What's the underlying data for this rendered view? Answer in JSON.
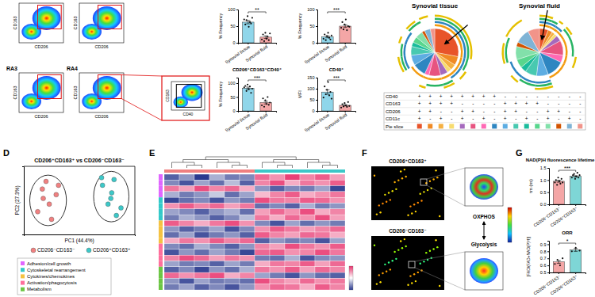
{
  "panel_letters": [
    "D",
    "E",
    "F",
    "G"
  ],
  "flow": {
    "plots": [
      {
        "x_label": "CD206",
        "y_label": "CD163"
      },
      {
        "x_label": "CD206",
        "y_label": "CD163"
      },
      {
        "label": "RA3",
        "x_label": "CD206",
        "y_label": "CD163"
      },
      {
        "label": "RA4",
        "x_label": "CD206",
        "y_label": "CD163"
      }
    ],
    "zoom": {
      "x_label": "CD40",
      "y_label": "CD163"
    }
  },
  "table": {
    "rows": [
      {
        "label": "CD40",
        "color": "#f39c12",
        "values": [
          "+",
          "+",
          "+",
          "+",
          "+",
          "+",
          "+",
          "+",
          "-",
          "-",
          "-",
          "-",
          "-",
          "-",
          "-",
          "-"
        ]
      },
      {
        "label": "CD163",
        "color": "#2e86c1",
        "values": [
          "+",
          "+",
          "+",
          "+",
          "-",
          "-",
          "-",
          "-",
          "+",
          "+",
          "+",
          "+",
          "-",
          "-",
          "-",
          "-"
        ]
      },
      {
        "label": "CD206",
        "color": "#28b463",
        "values": [
          "+",
          "+",
          "-",
          "-",
          "+",
          "+",
          "-",
          "-",
          "+",
          "+",
          "-",
          "-",
          "+",
          "+",
          "-",
          "-"
        ]
      },
      {
        "label": "CD11c",
        "color": "#e5c000",
        "values": [
          "+",
          "-",
          "+",
          "-",
          "+",
          "-",
          "+",
          "-",
          "+",
          "-",
          "+",
          "-",
          "+",
          "-",
          "+",
          "-"
        ]
      }
    ],
    "slice_label": "Pie slice"
  },
  "microscopy": {
    "top_label": "CD206⁺CD163⁺",
    "bottom_label": "CD206⁻CD163⁻",
    "top_state": "OXPHOS",
    "bottom_state": "Glycolysis"
  },
  "chart_data": [
    {
      "type": "bar",
      "y_label": "% Frequency",
      "categories": [
        "Synovial tissue",
        "Synovial fluid"
      ],
      "values": [
        62,
        17
      ],
      "errors": [
        5,
        4
      ],
      "points": [
        [
          70,
          55,
          68,
          80,
          48,
          62,
          58,
          75
        ],
        [
          10,
          25,
          5,
          30,
          12,
          18,
          8,
          28
        ]
      ],
      "colors": [
        "#8fd6ea",
        "#f4a6a6"
      ],
      "annotation": "**",
      "ylim": [
        0,
        100
      ],
      "yticks": [
        0,
        50,
        100
      ]
    },
    {
      "type": "bar",
      "y_label": "% Frequency",
      "categories": [
        "Synovial tissue",
        "Synovial fluid"
      ],
      "values": [
        18,
        50
      ],
      "errors": [
        3,
        4
      ],
      "points": [
        [
          12,
          25,
          8,
          20,
          30,
          15,
          10,
          22
        ],
        [
          45,
          62,
          40,
          55,
          70,
          38,
          50,
          48
        ]
      ],
      "colors": [
        "#8fd6ea",
        "#f4a6a6"
      ],
      "annotation": "***",
      "ylim": [
        0,
        100
      ],
      "yticks": [
        0,
        50,
        100
      ]
    },
    {
      "type": "bar",
      "title": "CD206⁺CD163⁺CD40⁺",
      "y_label": "% Frequency",
      "categories": [
        "Synovial tissue",
        "Synovial fluid"
      ],
      "values": [
        82,
        30
      ],
      "errors": [
        4,
        5
      ],
      "points": [
        [
          85,
          90,
          72,
          95,
          78,
          88,
          65,
          80
        ],
        [
          20,
          45,
          15,
          38,
          25,
          50,
          22,
          30
        ]
      ],
      "colors": [
        "#8fd6ea",
        "#f4a6a6"
      ],
      "annotation": "***",
      "ylim": [
        0,
        120
      ],
      "yticks": [
        0,
        50,
        100
      ]
    },
    {
      "type": "bar",
      "title": "CD40⁺",
      "y_label": "MFI",
      "categories": [
        "Synovial tissue",
        "Synovial fluid"
      ],
      "values": [
        85,
        25
      ],
      "errors": [
        10,
        3
      ],
      "points": [
        [
          60,
          110,
          75,
          95,
          130,
          70,
          85,
          55
        ],
        [
          15,
          30,
          20,
          35,
          25,
          18,
          40,
          22
        ]
      ],
      "colors": [
        "#8fd6ea",
        "#f4a6a6"
      ],
      "annotation": "***",
      "ylim": [
        0,
        150
      ],
      "yticks": [
        0,
        50,
        100,
        150
      ]
    },
    {
      "type": "scatter",
      "title": "CD206⁺CD163⁺ vs CD206⁻CD163⁻",
      "x_label": "PC1 (44.4%)",
      "y_label": "PC2 (27.3%)",
      "xlim": [
        -12,
        12
      ],
      "ylim": [
        -9,
        9
      ],
      "tick_labels": false,
      "legend": "bottom",
      "series": [
        {
          "name": "CD206⁻CD163⁻",
          "color": "#f08080",
          "x": [
            -8,
            -6.5,
            -7.2,
            -5,
            -9,
            -6,
            -4.5,
            -7.8
          ],
          "values": [
            3,
            -1,
            5,
            1.5,
            -3,
            -5,
            4,
            0.5
          ]
        },
        {
          "name": "CD206⁺CD163⁺",
          "color": "#3cc8c8",
          "x": [
            5,
            7,
            6.2,
            8,
            4.8,
            6.8,
            9,
            7.5
          ],
          "values": [
            4,
            2,
            -1,
            -4,
            6,
            0.5,
            -2,
            5.5
          ]
        }
      ]
    },
    {
      "type": "heatmap",
      "color_range": [
        -1.5,
        1.5
      ],
      "column_colors": [
        "#f08080",
        "#f08080",
        "#f08080",
        "#f08080",
        "#f08080",
        "#f08080",
        "#3cc8c8",
        "#3cc8c8",
        "#3cc8c8",
        "#3cc8c8",
        "#3cc8c8",
        "#3cc8c8"
      ],
      "row_group_labels": [
        "Adhesion/cell growth",
        "Cytoskeletal rearrangement",
        "Cytokines/chemokines",
        "Activation/phagocytosis",
        "Metabolism"
      ],
      "row_group_colors": [
        "#e066ff",
        "#33c9c9",
        "#f5c242",
        "#ff6f9c",
        "#6cc644"
      ],
      "row_groups": [
        0,
        0,
        0,
        0,
        1,
        1,
        1,
        1,
        2,
        2,
        2,
        2,
        3,
        3,
        3,
        3,
        4,
        4,
        4,
        4
      ],
      "cells": [
        [
          -1.2,
          -0.8,
          -1.5,
          -0.6,
          -1.0,
          -0.9,
          1.1,
          0.8,
          1.4,
          0.9,
          1.2,
          0.7
        ],
        [
          -0.9,
          -1.3,
          -0.7,
          -1.1,
          -0.5,
          -1.2,
          0.9,
          1.3,
          0.6,
          1.0,
          0.8,
          1.2
        ],
        [
          1.0,
          0.7,
          1.3,
          0.9,
          1.1,
          0.6,
          -0.8,
          -1.2,
          -0.9,
          -1.0,
          -0.7,
          -1.4
        ],
        [
          -0.6,
          -1.0,
          -0.8,
          -0.4,
          -1.1,
          -0.7,
          0.5,
          0.9,
          1.2,
          0.6,
          0.8,
          1.0
        ],
        [
          -1.4,
          -1.1,
          -0.9,
          -1.3,
          -0.8,
          -1.0,
          1.3,
          1.0,
          0.9,
          1.2,
          1.1,
          0.8
        ],
        [
          0.8,
          1.2,
          0.9,
          1.1,
          0.7,
          1.0,
          -1.1,
          -0.9,
          -1.2,
          -0.6,
          -1.0,
          -0.8
        ],
        [
          -0.7,
          -0.9,
          -1.2,
          -0.8,
          -0.6,
          -1.1,
          0.7,
          1.1,
          0.8,
          1.3,
          0.6,
          0.9
        ],
        [
          -1.0,
          -0.6,
          -0.8,
          -1.2,
          -0.9,
          -0.5,
          1.0,
          0.6,
          1.1,
          0.8,
          1.3,
          0.7
        ],
        [
          1.2,
          0.9,
          0.6,
          1.0,
          1.3,
          0.8,
          -0.9,
          -1.3,
          -0.7,
          -1.1,
          -0.8,
          -1.0
        ],
        [
          -0.8,
          -1.2,
          -1.0,
          -0.7,
          -1.3,
          -0.9,
          0.8,
          1.2,
          1.0,
          0.7,
          0.9,
          1.1
        ],
        [
          -1.1,
          -0.7,
          -1.3,
          -1.0,
          -0.8,
          -1.2,
          1.2,
          0.9,
          0.7,
          1.1,
          1.0,
          0.6
        ],
        [
          0.6,
          1.0,
          0.8,
          1.2,
          0.9,
          1.1,
          -1.2,
          -0.8,
          -1.0,
          -0.9,
          -1.3,
          -0.7
        ],
        [
          -0.9,
          -1.1,
          -0.6,
          -0.9,
          -1.2,
          -0.8,
          0.9,
          0.7,
          1.3,
          1.0,
          0.8,
          1.2
        ],
        [
          -1.3,
          -0.8,
          -1.1,
          -0.7,
          -1.0,
          -1.4,
          1.1,
          1.2,
          0.8,
          0.9,
          1.3,
          1.0
        ],
        [
          0.9,
          1.3,
          1.1,
          0.7,
          1.0,
          0.8,
          -1.0,
          -1.1,
          -0.6,
          -1.3,
          -0.9,
          -0.8
        ],
        [
          -0.7,
          -1.0,
          -0.9,
          -1.2,
          -0.7,
          -1.0,
          0.6,
          1.0,
          0.9,
          1.2,
          0.7,
          1.1
        ],
        [
          -1.2,
          -0.9,
          -1.4,
          -0.8,
          -1.1,
          -0.6,
          1.0,
          0.8,
          1.2,
          0.7,
          1.1,
          0.9
        ],
        [
          1.1,
          0.8,
          1.0,
          1.3,
          0.6,
          0.9,
          -0.7,
          -1.0,
          -1.3,
          -0.8,
          -1.1,
          -1.2
        ],
        [
          -0.8,
          -1.3,
          -0.7,
          -1.0,
          -0.9,
          -1.1,
          1.3,
          0.9,
          0.7,
          1.1,
          0.8,
          1.0
        ],
        [
          -1.0,
          -0.7,
          -1.2,
          -0.9,
          -1.3,
          -0.8,
          0.8,
          1.1,
          1.0,
          0.6,
          1.2,
          0.9
        ]
      ]
    },
    {
      "type": "bar",
      "title": "NAD(P)H fluorescence lifetime",
      "y_label": "τm (ns)",
      "categories": [
        "CD206⁻CD163⁻",
        "CD206⁺CD163⁺"
      ],
      "values": [
        0.95,
        1.15
      ],
      "errors": [
        0.04,
        0.03
      ],
      "points": [
        [
          0.9,
          1.0,
          0.8,
          1.1,
          0.95,
          0.85,
          1.05,
          0.9
        ],
        [
          1.1,
          1.2,
          1.25,
          1.05,
          1.15,
          1.3,
          1.1,
          1.2
        ]
      ],
      "colors": [
        "#f4a6a6",
        "#7ed6d6"
      ],
      "annotation": "***",
      "ylim": [
        0,
        1.5
      ],
      "yticks": [
        {
          "value": 0,
          "label": "0.0"
        },
        0.5,
        {
          "value": 1,
          "label": "1.0"
        },
        1.5
      ]
    },
    {
      "type": "bar",
      "title": "ORR",
      "y_label": "[FAD/(FAD+NAD(P)H)]",
      "categories": [
        "CD206⁻CD163⁻",
        "CD206⁺CD163⁺"
      ],
      "values": [
        0.65,
        0.82
      ],
      "errors": [
        0.02,
        0.02
      ],
      "points": [
        [
          0.62,
          0.68,
          0.6,
          0.7
        ],
        [
          0.8,
          0.85,
          0.81
        ]
      ],
      "colors": [
        "#f4a6a6",
        "#7ed6d6"
      ],
      "annotation": "*",
      "ylim": [
        0.5,
        0.95
      ],
      "yticks": [
        0.5,
        0.6,
        0.7,
        0.8,
        0.9
      ]
    },
    {
      "type": "pie",
      "title": "Synovial tissue",
      "values": [
        28,
        6,
        4,
        3,
        5,
        8,
        3,
        9,
        7,
        6,
        3,
        4,
        5,
        2,
        4,
        3
      ],
      "colors": [
        "#e8542a",
        "#f08a24",
        "#f5b041",
        "#f7dc6f",
        "#a569bd",
        "#e75480",
        "#ff69b4",
        "#2e86c1",
        "#5dade2",
        "#48c9b0",
        "#1abc9c",
        "#58d68d",
        "#82e0aa",
        "#d35400",
        "#7fb3d5",
        "#f1948a"
      ]
    },
    {
      "type": "pie",
      "title": "Synovial fluid",
      "values": [
        6,
        3,
        2,
        2,
        4,
        10,
        5,
        12,
        8,
        8,
        4,
        6,
        9,
        3,
        10,
        8
      ],
      "colors": [
        "#e8542a",
        "#f08a24",
        "#f5b041",
        "#f7dc6f",
        "#a569bd",
        "#e75480",
        "#ff69b4",
        "#2e86c1",
        "#5dade2",
        "#48c9b0",
        "#1abc9c",
        "#58d68d",
        "#82e0aa",
        "#d35400",
        "#7fb3d5",
        "#f1948a"
      ]
    }
  ]
}
